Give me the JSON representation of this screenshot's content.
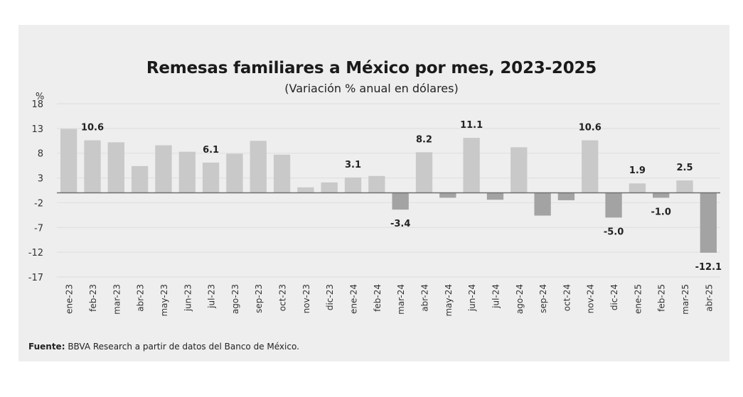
{
  "chart_data": {
    "type": "bar",
    "title": "Remesas familiares a México por mes, 2023-2025",
    "subtitle": "(Variación % anual en dólares)",
    "ylabel": "%",
    "xlabel": "",
    "ylim": [
      -17,
      18
    ],
    "yticks": [
      18,
      13,
      8,
      3,
      -2,
      -7,
      -12,
      -17
    ],
    "grid": true,
    "legend": "none",
    "categories": [
      "ene-23",
      "feb-23",
      "mar-23",
      "abr-23",
      "may-23",
      "jun-23",
      "jul-23",
      "ago-23",
      "sep-23",
      "oct-23",
      "nov-23",
      "dic-23",
      "ene-24",
      "feb-24",
      "mar-24",
      "abr-24",
      "may-24",
      "jun-24",
      "jul-24",
      "ago-24",
      "sep-24",
      "oct-24",
      "nov-24",
      "dic-24",
      "ene-25",
      "feb-25",
      "mar-25",
      "abr-25"
    ],
    "values": [
      12.9,
      10.6,
      10.2,
      5.4,
      9.6,
      8.3,
      6.1,
      7.9,
      10.5,
      7.7,
      1.1,
      2.1,
      3.1,
      3.4,
      -3.4,
      8.2,
      -1.0,
      11.1,
      -1.4,
      9.2,
      -4.6,
      -1.5,
      10.6,
      -5.0,
      1.9,
      -1.0,
      2.5,
      -12.1
    ],
    "data_labels": [
      {
        "category": "feb-23",
        "text": "10.6"
      },
      {
        "category": "jul-23",
        "text": "6.1"
      },
      {
        "category": "ene-24",
        "text": "3.1"
      },
      {
        "category": "mar-24",
        "text": "-3.4"
      },
      {
        "category": "abr-24",
        "text": "8.2"
      },
      {
        "category": "jun-24",
        "text": "11.1"
      },
      {
        "category": "nov-24",
        "text": "10.6"
      },
      {
        "category": "dic-24",
        "text": "-5.0"
      },
      {
        "category": "ene-25",
        "text": "1.9"
      },
      {
        "category": "feb-25",
        "text": "-1.0"
      },
      {
        "category": "mar-25",
        "text": "2.5"
      },
      {
        "category": "abr-25",
        "text": "-12.1"
      }
    ],
    "colors": {
      "positive": "#c9c9c9",
      "negative": "#a3a3a3",
      "grid": "#e0e0e0",
      "axis": "#6f6f6f"
    }
  },
  "source": {
    "label": "Fuente:",
    "text": " BBVA Research a partir de datos del Banco de México."
  }
}
